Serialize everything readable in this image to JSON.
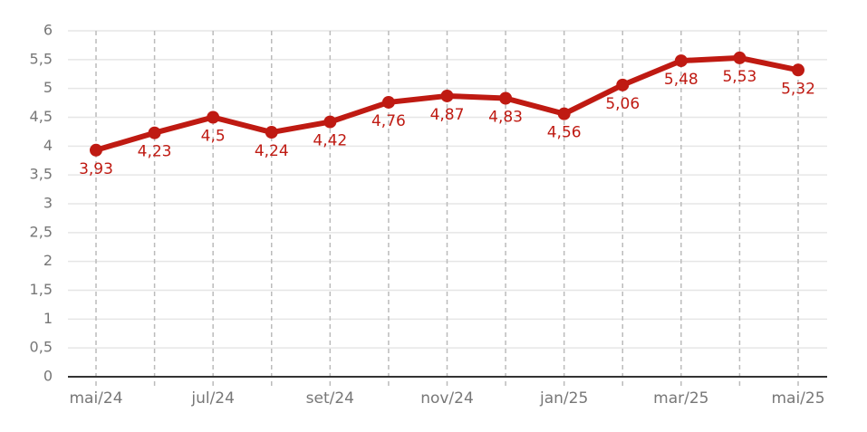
{
  "chart_data": {
    "type": "line",
    "categories": [
      "mai/24",
      null,
      "jul/24",
      null,
      "set/24",
      null,
      "nov/24",
      null,
      "jan/25",
      null,
      "mar/25",
      null,
      "mai/25"
    ],
    "values": [
      3.93,
      4.23,
      4.5,
      4.24,
      4.42,
      4.76,
      4.87,
      4.83,
      4.56,
      5.06,
      5.48,
      5.53,
      5.32
    ],
    "value_labels": [
      "3,93",
      "4,23",
      "4,5",
      "4,24",
      "4,42",
      "4,76",
      "4,87",
      "4,83",
      "4,56",
      "5,06",
      "5,48",
      "5,53",
      "5,32"
    ],
    "color": "#bf1a12",
    "ylim": [
      0,
      6
    ],
    "yticks": [
      0,
      {
        "value": 0.5,
        "label": "0,5"
      },
      1,
      {
        "value": 1.5,
        "label": "1,5"
      },
      2,
      {
        "value": 2.5,
        "label": "2,5"
      },
      3,
      {
        "value": 3.5,
        "label": "3,5"
      },
      4,
      {
        "value": 4.5,
        "label": "4,5"
      },
      5,
      {
        "value": 5.5,
        "label": "5,5"
      },
      6
    ],
    "grid": true
  }
}
